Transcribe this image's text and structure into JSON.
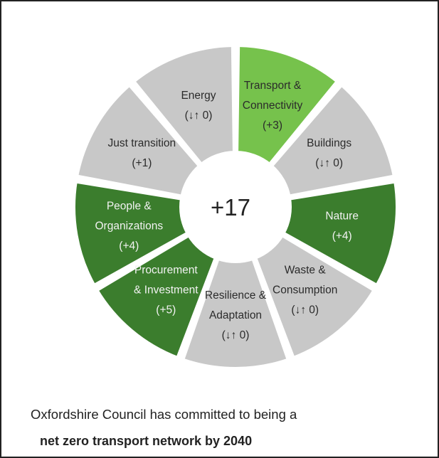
{
  "diagram": {
    "center_value": "+17",
    "segments": [
      {
        "lines": [
          "Energy",
          "(↓↑ 0)"
        ],
        "color": "#c8c8c8",
        "dark": false
      },
      {
        "lines": [
          "Transport &",
          "Connectivity",
          "(+3)"
        ],
        "color": "#76c24c",
        "dark": false
      },
      {
        "lines": [
          "Buildings",
          "(↓↑ 0)"
        ],
        "color": "#c8c8c8",
        "dark": false
      },
      {
        "lines": [
          "Nature",
          "(+4)"
        ],
        "color": "#3b7d2d",
        "dark": true
      },
      {
        "lines": [
          "Waste &",
          "Consumption",
          "(↓↑ 0)"
        ],
        "color": "#c8c8c8",
        "dark": false
      },
      {
        "lines": [
          "Resilience &",
          "Adaptation",
          "(↓↑ 0)"
        ],
        "color": "#c8c8c8",
        "dark": false
      },
      {
        "lines": [
          "Procurement",
          "& Investment",
          "(+5)"
        ],
        "color": "#3b7d2d",
        "dark": true
      },
      {
        "lines": [
          "People &",
          "Organizations",
          "(+4)"
        ],
        "color": "#3b7d2d",
        "dark": true
      },
      {
        "lines": [
          "Just transition",
          "(+1)"
        ],
        "color": "#c8c8c8",
        "dark": false
      }
    ],
    "center_fill": "#ffffff",
    "gap_color": "#ffffff"
  },
  "caption": {
    "line1": "Oxfordshire Council has committed to being a",
    "line2": "net zero transport network by 2040"
  }
}
